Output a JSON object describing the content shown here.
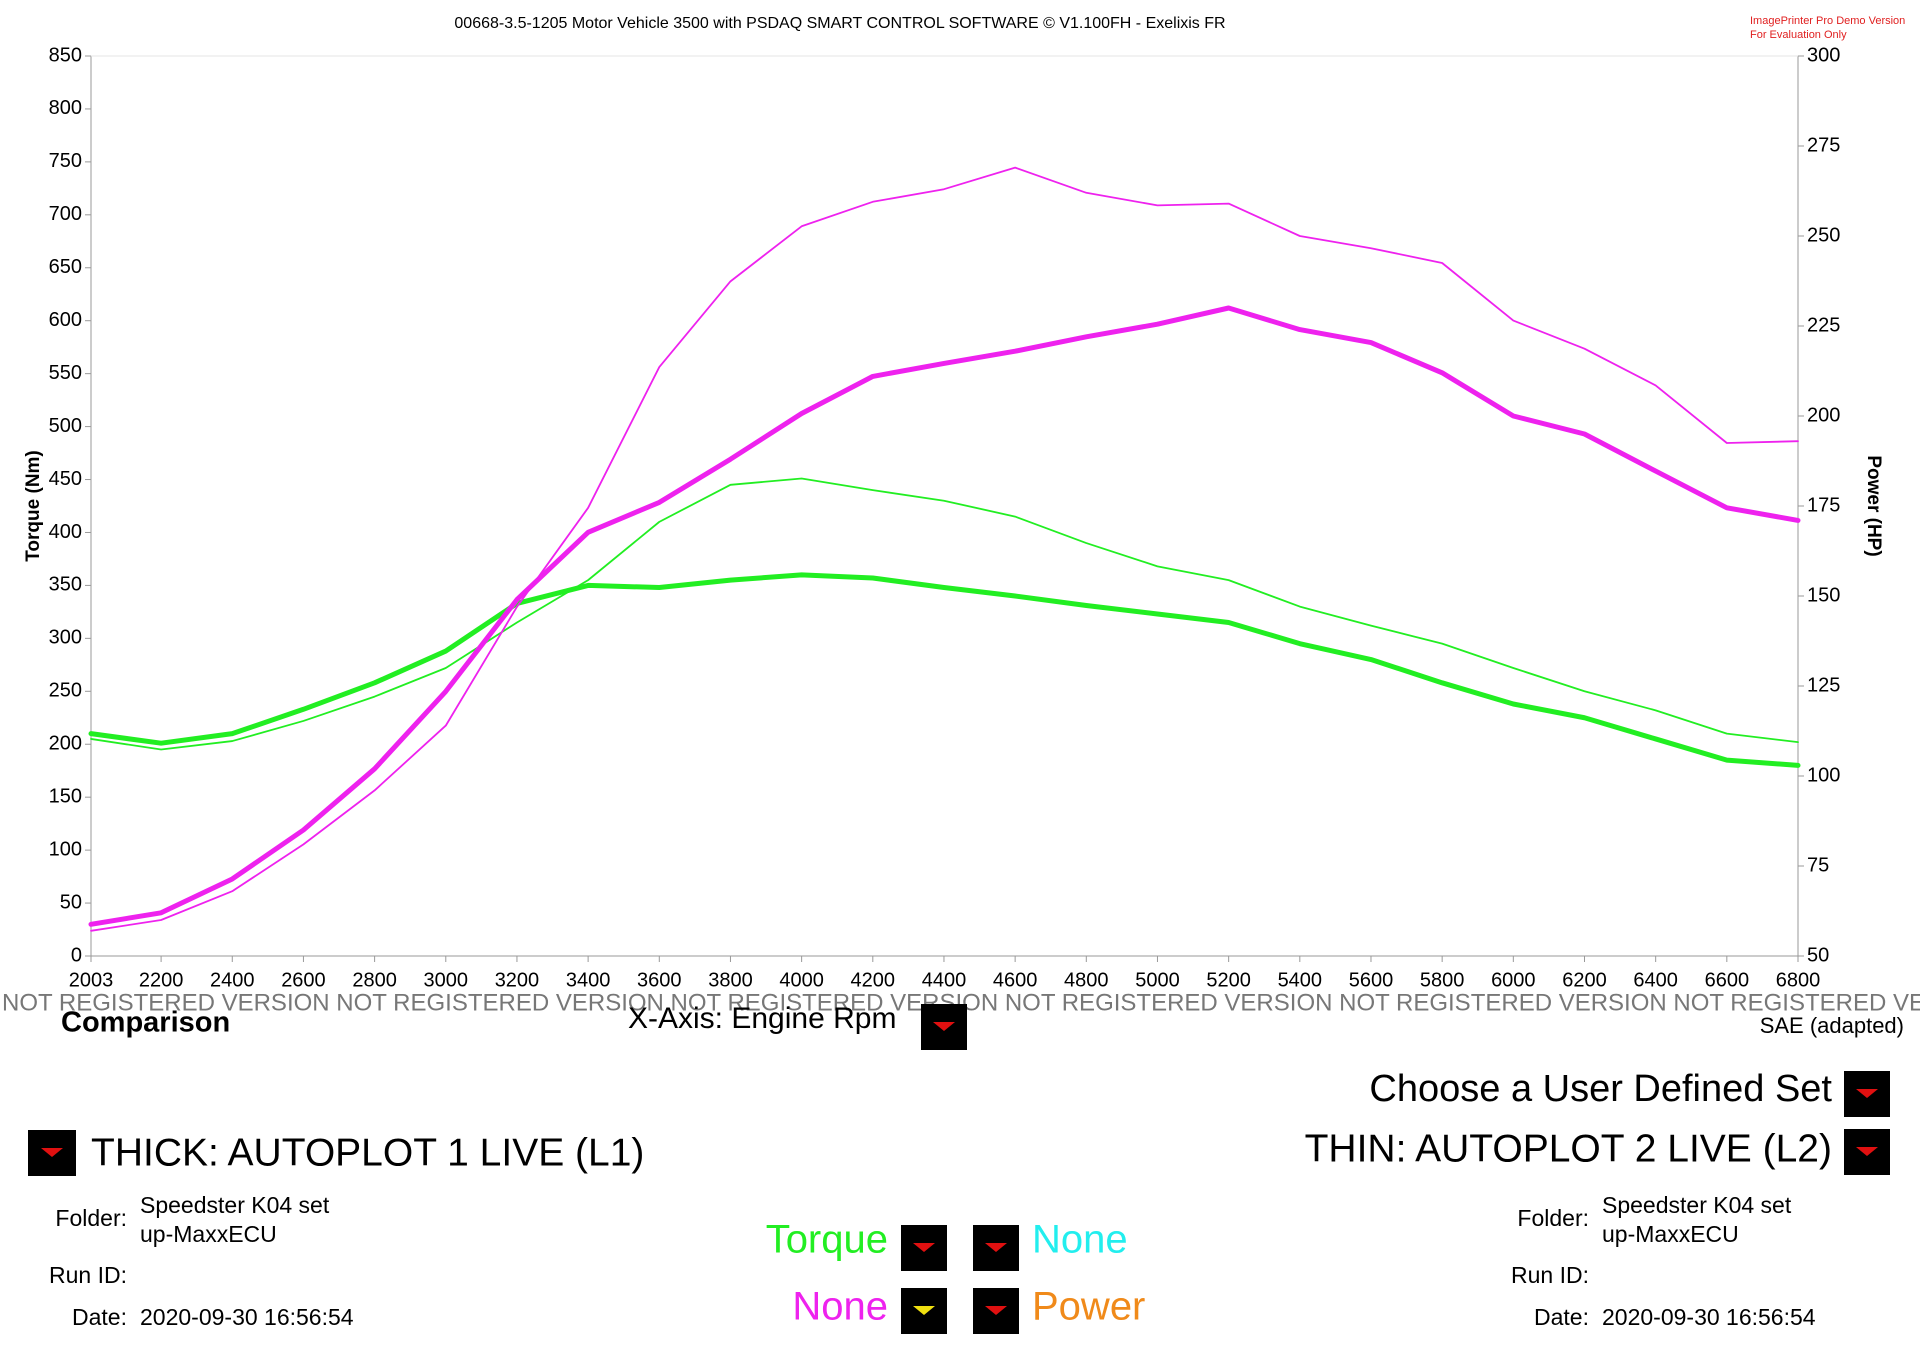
{
  "chart_data": {
    "type": "line",
    "title": "00668-3.5-1205 Motor Vehicle 3500 with PSDAQ SMART CONTROL SOFTWARE © V1.100FH - Exelixis FR",
    "ylabel": "Torque (Nm)",
    "y2label": "Power (HP)",
    "x": [
      2003,
      2200,
      2400,
      2600,
      2800,
      3000,
      3200,
      3400,
      3600,
      3800,
      4000,
      4200,
      4400,
      4600,
      4800,
      5000,
      5200,
      5400,
      5600,
      5800,
      6000,
      6200,
      6400,
      6600,
      6800
    ],
    "xlim": [
      2003,
      6800
    ],
    "xticks": [
      2003,
      2200,
      2400,
      2600,
      2800,
      3000,
      3200,
      3400,
      3600,
      3800,
      4000,
      4200,
      4400,
      4600,
      4800,
      5000,
      5200,
      5400,
      5600,
      5800,
      6000,
      6200,
      6400,
      6600,
      6800
    ],
    "ylim": [
      0,
      850
    ],
    "yticks": [
      0,
      50,
      100,
      150,
      200,
      250,
      300,
      350,
      400,
      450,
      500,
      550,
      600,
      650,
      700,
      750,
      800,
      850
    ],
    "y2lim": [
      50,
      300
    ],
    "y2ticks": [
      50,
      75,
      100,
      125,
      150,
      175,
      200,
      225,
      250,
      275,
      300
    ],
    "series": [
      {
        "color": "#22ee22",
        "width": 5,
        "values": [
          210,
          201,
          210,
          233,
          258,
          288,
          333,
          350,
          348,
          355,
          360,
          357,
          348,
          340,
          331,
          323,
          315,
          295,
          280,
          258,
          238,
          225,
          205,
          185,
          180
        ]
      },
      {
        "color": "#22ee22",
        "width": 1.8,
        "values": [
          205,
          195,
          203,
          222,
          245,
          272,
          315,
          355,
          410,
          445,
          451,
          440,
          430,
          415,
          390,
          368,
          355,
          330,
          312,
          295,
          272,
          250,
          232,
          210,
          202
        ]
      },
      {
        "color": "#ee22ee",
        "width": 5,
        "axis": "y2",
        "values": [
          58.8,
          62,
          71.4,
          85,
          102,
          123.5,
          149,
          167.7,
          176,
          188,
          200.7,
          211,
          214.6,
          218,
          222,
          225.5,
          230,
          224,
          220.4,
          212,
          200,
          195,
          184.7,
          174.5,
          171
        ]
      },
      {
        "color": "#ee22ee",
        "width": 1.8,
        "axis": "y2",
        "values": [
          57,
          60,
          68,
          81,
          96,
          114,
          147,
          174.5,
          213.6,
          237.4,
          252.7,
          259.5,
          263,
          269,
          262,
          258.5,
          259,
          250,
          246.6,
          242.5,
          226.5,
          218.7,
          208.5,
          192.5,
          193
        ]
      }
    ]
  },
  "watermark": [
    "ImagePrinter Pro Demo Version",
    "For Evaluation Only"
  ],
  "registration_notice": "NOT REGISTERED VERSION NOT REGISTERED VERSION NOT REGISTERED VERSION NOT REGISTERED VERSION NOT REGISTERED VERSION NOT REGISTERED VERSION NOT REGISTERED VERSION",
  "panel": {
    "comparison": "Comparison",
    "x_axis_selector": "X-Axis: Engine Rpm",
    "correction": "SAE (adapted)",
    "user_set": "Choose a User Defined Set",
    "thick": "THICK: AUTOPLOT 1 LIVE (L1)",
    "thin": "THIN: AUTOPLOT 2 LIVE (L2)",
    "left_run": {
      "folder_label": "Folder:",
      "folder": [
        "Speedster K04 set",
        "up-MaxxECU"
      ],
      "run_id_label": "Run ID:",
      "date_label": "Date:",
      "date": "2020-09-30 16:56:54"
    },
    "right_run": {
      "folder_label": "Folder:",
      "folder": [
        "Speedster K04 set",
        "up-MaxxECU"
      ],
      "run_id_label": "Run ID:",
      "date_label": "Date:",
      "date": "2020-09-30 16:56:54"
    },
    "channels": [
      "Torque",
      "None",
      "None",
      "Power"
    ]
  }
}
